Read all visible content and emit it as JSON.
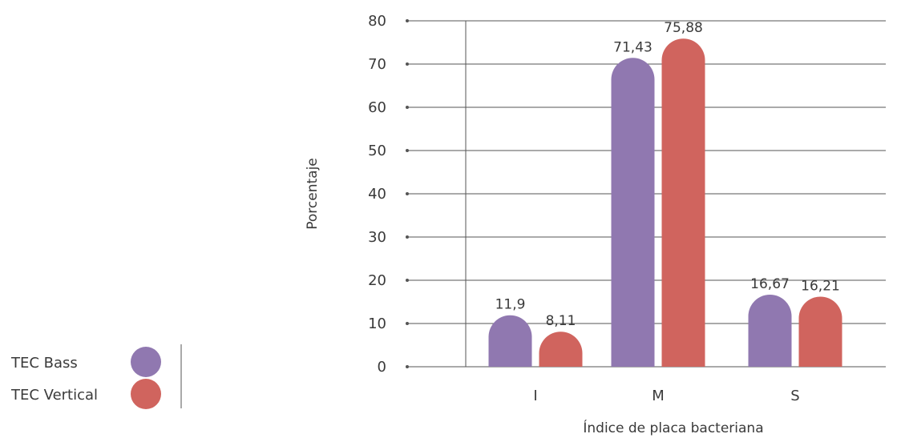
{
  "chart_data": {
    "type": "bar",
    "title": "",
    "xlabel": "Índice de placa bacteriana",
    "ylabel": "Porcentaje",
    "categories": [
      "I",
      "M",
      "S"
    ],
    "series": [
      {
        "name": "TEC Bass",
        "color": "#9078b0",
        "values": [
          11.9,
          71.43,
          16.67
        ],
        "value_labels": [
          "11,9",
          "71,43",
          "16,67"
        ]
      },
      {
        "name": "TEC Vertical",
        "color": "#d0645e",
        "values": [
          8.11,
          75.88,
          16.21
        ],
        "value_labels": [
          "8,11",
          "75,88",
          "16,21"
        ]
      }
    ],
    "ylim": [
      0,
      80
    ],
    "yticks": [
      0,
      10,
      20,
      30,
      40,
      50,
      60,
      70,
      80
    ],
    "grid": true,
    "legend_position": "bottom-left"
  }
}
